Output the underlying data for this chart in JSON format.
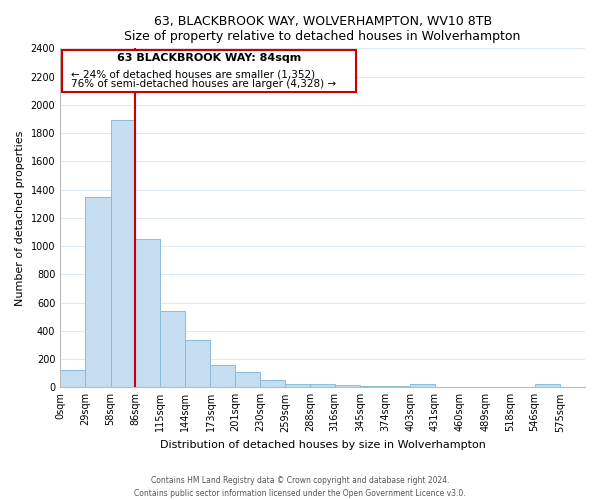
{
  "title": "63, BLACKBROOK WAY, WOLVERHAMPTON, WV10 8TB",
  "subtitle": "Size of property relative to detached houses in Wolverhampton",
  "xlabel": "Distribution of detached houses by size in Wolverhampton",
  "ylabel": "Number of detached properties",
  "bin_labels": [
    "0sqm",
    "29sqm",
    "58sqm",
    "86sqm",
    "115sqm",
    "144sqm",
    "173sqm",
    "201sqm",
    "230sqm",
    "259sqm",
    "288sqm",
    "316sqm",
    "345sqm",
    "374sqm",
    "403sqm",
    "431sqm",
    "460sqm",
    "489sqm",
    "518sqm",
    "546sqm",
    "575sqm"
  ],
  "bar_values": [
    120,
    1350,
    1890,
    1050,
    540,
    335,
    155,
    105,
    55,
    25,
    20,
    15,
    10,
    10,
    25,
    5,
    5,
    0,
    5,
    20
  ],
  "bar_color": "#c5ddf0",
  "bar_edge_color": "#8bbcd8",
  "property_line_x": 86,
  "ylim": [
    0,
    2400
  ],
  "yticks": [
    0,
    200,
    400,
    600,
    800,
    1000,
    1200,
    1400,
    1600,
    1800,
    2000,
    2200,
    2400
  ],
  "annotation_title": "63 BLACKBROOK WAY: 84sqm",
  "annotation_line1": "← 24% of detached houses are smaller (1,352)",
  "annotation_line2": "76% of semi-detached houses are larger (4,328) →",
  "annotation_box_color": "#ffffff",
  "annotation_box_edge": "#cc0000",
  "property_line_color": "#cc0000",
  "footer_line1": "Contains HM Land Registry data © Crown copyright and database right 2024.",
  "footer_line2": "Contains public sector information licensed under the Open Government Licence v3.0.",
  "background_color": "#ffffff",
  "grid_color": "#dde8f0"
}
